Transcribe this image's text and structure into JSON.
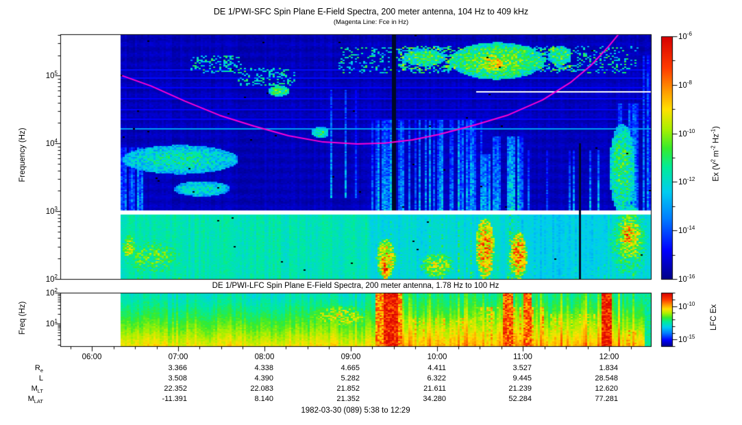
{
  "header": {
    "title": "DE 1/PWI-SFC  Spin Plane E-Field Spectra, 200 meter antenna, 104 Hz to 409 kHz",
    "subtitle": "(Magenta Line: Fce in Hz)"
  },
  "lfc_header": {
    "title": "DE 1/PWI-LFC  Spin Plane E-Field Spectra, 200 meter antenna, 1.78 Hz to 100 Hz"
  },
  "axes": {
    "sfc_ylabel": "Frequency (Hz)",
    "lfc_ylabel": "Freq (Hz)",
    "sfc_ytick_exps": [
      5,
      4,
      3,
      2
    ],
    "lfc_ytick_exps": [
      2,
      1
    ],
    "x_tick_labels": [
      "06:00",
      "07:00",
      "08:00",
      "09:00",
      "10:00",
      "11:00",
      "12:00"
    ]
  },
  "colorbars": {
    "sfc": {
      "labeled_exps": [
        -6,
        -8,
        -10,
        -12,
        -14,
        -16
      ],
      "label_parts": [
        [
          "t",
          "Ex (V"
        ],
        [
          "s",
          "2"
        ],
        [
          "t",
          " m"
        ],
        [
          "s",
          "-2"
        ],
        [
          "t",
          " Hz"
        ],
        [
          "s",
          "-1"
        ],
        [
          "t",
          ")"
        ]
      ]
    },
    "lfc": {
      "labeled_exps": [
        -10,
        -15
      ],
      "label_parts": [
        [
          "t",
          "LFC Ex"
        ]
      ]
    }
  },
  "ephemeris": {
    "rows": [
      {
        "label": "R",
        "sub": "e",
        "values": [
          "",
          "3.366",
          "4.338",
          "4.665",
          "4.411",
          "3.527",
          "1.834"
        ]
      },
      {
        "label": "L",
        "sub": "",
        "values": [
          "",
          "3.508",
          "4.390",
          "5.282",
          "6.322",
          "9.445",
          "28.548"
        ]
      },
      {
        "label": "M",
        "sub": "LT",
        "values": [
          "",
          "22.352",
          "22.083",
          "21.852",
          "21.611",
          "21.239",
          "12.620"
        ]
      },
      {
        "label": "M",
        "sub": "LAT",
        "values": [
          "",
          "-11.391",
          "8.140",
          "21.352",
          "34.280",
          "52.284",
          "77.281"
        ]
      }
    ]
  },
  "caption": "1982-03-30 (089) 5:38 to 12:29",
  "colors": {
    "fce_line": "#ff00d4",
    "background": "#ffffff",
    "frame": "#000000",
    "gap_column": "#000a28"
  },
  "chart_data": {
    "type": "heatmap",
    "description": "Two log-frequency radio spectrograms from DE 1 Plasma Wave Instrument: SFC (104 Hz - 409 kHz) and LFC (1.78 Hz - 100 Hz) electric field spectral density vs UT, with electron cyclotron frequency (Fce) overplotted in magenta.",
    "seed": 7,
    "time_axis": {
      "start_hours": 5.6333,
      "end_hours": 12.4833,
      "data_start_hours": 6.34,
      "hour_ticks": [
        6,
        7,
        8,
        9,
        10,
        11,
        12
      ],
      "minor_tick_hours": 0.25,
      "range_label": "5:38 to 12:29"
    },
    "fce_line_hz": [
      [
        6.35,
        100000
      ],
      [
        6.69,
        70000
      ],
      [
        7.08,
        42000
      ],
      [
        7.48,
        26000
      ],
      [
        7.88,
        18000
      ],
      [
        8.28,
        13000
      ],
      [
        8.68,
        10500
      ],
      [
        9.08,
        9800
      ],
      [
        9.4,
        10100
      ],
      [
        9.72,
        11300
      ],
      [
        10.03,
        13600
      ],
      [
        10.43,
        18500
      ],
      [
        10.83,
        26300
      ],
      [
        11.23,
        44000
      ],
      [
        11.55,
        79000
      ],
      [
        11.79,
        142000
      ],
      [
        11.99,
        267000
      ],
      [
        12.16,
        490000
      ]
    ],
    "panels": [
      {
        "id": "sfc",
        "freq_range_hz": [
          104,
          409000
        ],
        "lf_range": [
          2.0,
          5.61
        ],
        "colorbar_range_exp": [
          -6,
          -16
        ],
        "units_exp": "V^2 m^-2 Hz^-1",
        "white_band_lf": [
          2.958,
          3.022
        ],
        "features": [
          {
            "k": "hl",
            "lf": 5.1,
            "h": 0.012,
            "t": [
              6.34,
              12.483
            ],
            "v": 0.13
          },
          {
            "k": "hl",
            "lf": 4.97,
            "h": 0.012,
            "t": [
              6.34,
              12.483
            ],
            "v": 0.13
          },
          {
            "k": "hl",
            "lf": 4.83,
            "h": 0.012,
            "t": [
              6.34,
              12.483
            ],
            "v": 0.12
          },
          {
            "k": "hl",
            "lf": 4.67,
            "h": 0.012,
            "t": [
              6.34,
              12.483
            ],
            "v": 0.12
          },
          {
            "k": "hl",
            "lf": 4.51,
            "h": 0.012,
            "t": [
              6.34,
              12.483
            ],
            "v": 0.12
          },
          {
            "k": "hl",
            "lf": 4.37,
            "h": 0.012,
            "t": [
              6.34,
              12.483
            ],
            "v": 0.12
          },
          {
            "k": "hl",
            "lf": 4.22,
            "h": 0.013,
            "t": [
              6.34,
              12.483
            ],
            "v": 0.3
          },
          {
            "k": "whl",
            "lf": 4.77,
            "h": 0.012,
            "t": [
              10.45,
              12.483
            ]
          },
          {
            "k": "gap",
            "t": [
              9.47,
              9.52
            ],
            "lf": [
              3.02,
              5.61
            ]
          },
          {
            "k": "gap",
            "t": [
              11.64,
              11.67
            ],
            "lf": [
              2.0,
              4.0
            ]
          },
          {
            "k": "st",
            "t": [
              6.34,
              6.6
            ],
            "lf": [
              2.0,
              3.95
            ],
            "d": 0.85,
            "v": 0.5,
            "s": 1
          },
          {
            "k": "st",
            "t": [
              6.34,
              7.7
            ],
            "lf": [
              2.0,
              2.96
            ],
            "d": 0.5,
            "v": 0.52,
            "s": 2
          },
          {
            "k": "blob",
            "t": [
              6.36,
              7.05
            ],
            "lf": [
              2.05,
              2.6
            ],
            "v": 0.55
          },
          {
            "k": "blob",
            "t": [
              6.36,
              6.5
            ],
            "lf": [
              2.3,
              2.65
            ],
            "v": 0.66
          },
          {
            "k": "blob",
            "t": [
              6.35,
              7.7
            ],
            "lf": [
              3.55,
              3.98
            ],
            "v": 0.45
          },
          {
            "k": "blob",
            "t": [
              6.95,
              7.6
            ],
            "lf": [
              3.22,
              3.45
            ],
            "v": 0.43
          },
          {
            "k": "sp",
            "t": [
              7.15,
              7.75
            ],
            "lf": [
              5.05,
              5.3
            ],
            "d": 0.3,
            "v": 0.42,
            "s": 3
          },
          {
            "k": "sp",
            "t": [
              7.7,
              8.35
            ],
            "lf": [
              4.85,
              5.12
            ],
            "d": 0.3,
            "v": 0.42,
            "s": 4
          },
          {
            "k": "blob",
            "t": [
              8.05,
              8.3
            ],
            "lf": [
              4.7,
              4.86
            ],
            "v": 0.55
          },
          {
            "k": "blob",
            "t": [
              8.55,
              8.75
            ],
            "lf": [
              4.08,
              4.26
            ],
            "v": 0.5
          },
          {
            "k": "st",
            "t": [
              8.75,
              9.25
            ],
            "lf": [
              3.2,
              4.8
            ],
            "d": 0.25,
            "v": 0.38,
            "s": 5
          },
          {
            "k": "sp",
            "t": [
              8.85,
              12.35
            ],
            "lf": [
              5.05,
              5.45
            ],
            "d": 0.2,
            "v": 0.42,
            "s": 6
          },
          {
            "k": "sp",
            "t": [
              9.55,
              11.55
            ],
            "lf": [
              5.08,
              5.42
            ],
            "d": 0.33,
            "v": 0.5,
            "s": 7
          },
          {
            "k": "blob",
            "t": [
              9.6,
              10.1
            ],
            "lf": [
              5.15,
              5.4
            ],
            "v": 0.5
          },
          {
            "k": "blob",
            "t": [
              10.15,
              11.25
            ],
            "lf": [
              4.95,
              5.5
            ],
            "v": 0.57
          },
          {
            "k": "blob",
            "t": [
              10.5,
              10.85
            ],
            "lf": [
              5.05,
              5.35
            ],
            "v": 0.7
          },
          {
            "k": "blob",
            "t": [
              11.3,
              11.55
            ],
            "lf": [
              5.15,
              5.45
            ],
            "v": 0.5
          },
          {
            "k": "st",
            "t": [
              9.25,
              10.55
            ],
            "lf": [
              2.0,
              4.35
            ],
            "d": 0.6,
            "v": 0.53,
            "s": 8
          },
          {
            "k": "st",
            "t": [
              10.55,
              11.0
            ],
            "lf": [
              2.0,
              4.1
            ],
            "d": 0.55,
            "v": 0.6,
            "s": 9
          },
          {
            "k": "st",
            "t": [
              11.0,
              11.95
            ],
            "lf": [
              2.96,
              3.9
            ],
            "d": 0.25,
            "v": 0.42,
            "s": 10
          },
          {
            "k": "st",
            "t": [
              10.9,
              11.95
            ],
            "lf": [
              2.0,
              2.96
            ],
            "d": 0.5,
            "v": 0.5,
            "s": 11
          },
          {
            "k": "st",
            "t": [
              11.95,
              12.35
            ],
            "lf": [
              2.0,
              4.6
            ],
            "d": 0.55,
            "v": 0.5,
            "s": 12
          },
          {
            "k": "blob",
            "t": [
              12.0,
              12.3
            ],
            "lf": [
              2.96,
              4.3
            ],
            "v": 0.52
          },
          {
            "k": "st",
            "t": [
              12.38,
              12.48
            ],
            "lf": [
              2.0,
              5.3
            ],
            "d": 0.7,
            "v": 0.38,
            "s": 13
          },
          {
            "k": "blob",
            "t": [
              9.3,
              9.52
            ],
            "lf": [
              2.0,
              2.6
            ],
            "v": 0.74
          },
          {
            "k": "blob",
            "t": [
              9.36,
              9.45
            ],
            "lf": [
              2.0,
              2.35
            ],
            "v": 0.88
          },
          {
            "k": "blob",
            "t": [
              9.8,
              10.2
            ],
            "lf": [
              2.0,
              2.4
            ],
            "v": 0.62
          },
          {
            "k": "blob",
            "t": [
              10.45,
              10.67
            ],
            "lf": [
              2.0,
              2.9
            ],
            "v": 0.8
          },
          {
            "k": "st",
            "t": [
              10.5,
              10.62
            ],
            "lf": [
              2.0,
              3.85
            ],
            "d": 0.9,
            "v": 0.68,
            "s": 14
          },
          {
            "k": "blob",
            "t": [
              10.85,
              11.05
            ],
            "lf": [
              2.0,
              2.7
            ],
            "v": 0.8
          },
          {
            "k": "blob",
            "t": [
              12.0,
              12.45
            ],
            "lf": [
              2.0,
              3.1
            ],
            "v": 0.55
          },
          {
            "k": "blob",
            "t": [
              12.08,
              12.4
            ],
            "lf": [
              2.2,
              3.0
            ],
            "v": 0.66
          },
          {
            "k": "blob",
            "t": [
              12.13,
              12.3
            ],
            "lf": [
              2.45,
              2.85
            ],
            "v": 0.78
          }
        ]
      },
      {
        "id": "lfc",
        "freq_range_hz": [
          1.78,
          100
        ],
        "lf_range": [
          0.25,
          2.0
        ],
        "colorbar_range_exp": [
          -8,
          -16
        ],
        "features": [
          {
            "k": "blob",
            "t": [
              8.5,
              9.25
            ],
            "lf": [
              0.85,
              1.6
            ],
            "v": 0.63,
            "s": 20
          },
          {
            "k": "vb",
            "t": [
              9.3,
              9.6
            ],
            "v": 0.8,
            "s": 21
          },
          {
            "k": "vb",
            "t": [
              9.38,
              9.54
            ],
            "v": 0.95,
            "s": 22
          },
          {
            "k": "zone",
            "t": [
              9.6,
              10.45
            ],
            "lf": [
              0.25,
              1.2
            ],
            "v": 0.72,
            "s": 23
          },
          {
            "k": "zone",
            "t": [
              10.45,
              11.25
            ],
            "lf": [
              0.25,
              1.55
            ],
            "v": 0.76,
            "s": 24
          },
          {
            "k": "vb",
            "t": [
              10.76,
              10.88
            ],
            "v": 0.86,
            "s": 25
          },
          {
            "k": "vb",
            "t": [
              11.0,
              11.1
            ],
            "v": 0.84,
            "s": 26
          },
          {
            "k": "zone",
            "t": [
              11.25,
              11.9
            ],
            "lf": [
              0.25,
              1.3
            ],
            "v": 0.7,
            "s": 27
          },
          {
            "k": "vb",
            "t": [
              11.9,
              12.04
            ],
            "v": 0.95,
            "s": 28
          },
          {
            "k": "zone",
            "t": [
              12.06,
              12.38
            ],
            "lf": [
              0.25,
              0.75
            ],
            "v": 0.76,
            "s": 29
          },
          {
            "k": "zone",
            "t": [
              12.1,
              12.3
            ],
            "lf": [
              0.25,
              0.5
            ],
            "v": 0.85,
            "s": 30
          },
          {
            "k": "vbset",
            "t": [
              12.42,
              12.483
            ],
            "v": 0.46,
            "s": 31
          }
        ]
      }
    ]
  }
}
